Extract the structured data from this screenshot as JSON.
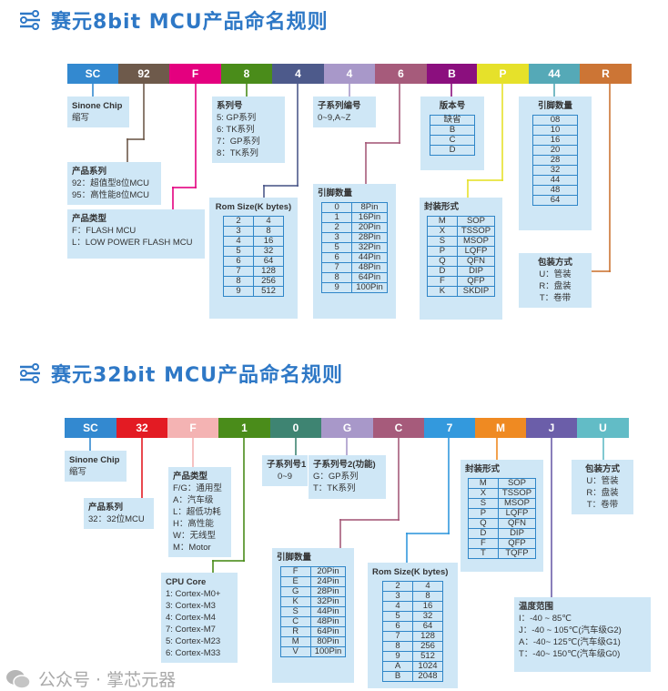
{
  "watermark": "公众号 · 掌芯元器",
  "sections": [
    {
      "title": "赛元8bit MCU产品命名规则",
      "segments": [
        {
          "label": "SC",
          "color": "#3389d0"
        },
        {
          "label": "92",
          "color": "#6e5a4b"
        },
        {
          "label": "F",
          "color": "#e4007f"
        },
        {
          "label": "8",
          "color": "#4a8c1a"
        },
        {
          "label": "4",
          "color": "#4d5a8b"
        },
        {
          "label": "4",
          "color": "#a898c9"
        },
        {
          "label": "6",
          "color": "#a65b7b"
        },
        {
          "label": "B",
          "color": "#8b0f7e"
        },
        {
          "label": "P",
          "color": "#e6e12a"
        },
        {
          "label": "44",
          "color": "#55a9b7"
        },
        {
          "label": "R",
          "color": "#cc7535"
        }
      ],
      "boxes": [
        {
          "title": "Sinone Chip",
          "lines": [
            "缩写"
          ]
        },
        {
          "title": "产品系列",
          "lines": [
            "92：超值型8位MCU",
            "95：高性能8位MCU"
          ]
        },
        {
          "title": "产品类型",
          "lines": [
            "F：FLASH MCU",
            "L：LOW POWER FLASH MCU"
          ]
        },
        {
          "title": "系列号",
          "lines": [
            "5:  GP系列",
            "6:  TK系列",
            "7：GP系列",
            "8：TK系列"
          ]
        },
        {
          "title": "Rom Size(K bytes)",
          "table": [
            [
              "2",
              "4"
            ],
            [
              "3",
              "8"
            ],
            [
              "4",
              "16"
            ],
            [
              "5",
              "32"
            ],
            [
              "6",
              "64"
            ],
            [
              "7",
              "128"
            ],
            [
              "8",
              "256"
            ],
            [
              "9",
              "512"
            ]
          ]
        },
        {
          "title": "子系列编号",
          "lines": [
            "0~9,A~Z"
          ]
        },
        {
          "title": "引脚数量",
          "table": [
            [
              "0",
              "8Pin"
            ],
            [
              "1",
              "16Pin"
            ],
            [
              "2",
              "20Pin"
            ],
            [
              "3",
              "28Pin"
            ],
            [
              "5",
              "32Pin"
            ],
            [
              "6",
              "44Pin"
            ],
            [
              "7",
              "48Pin"
            ],
            [
              "8",
              "64Pin"
            ],
            [
              "9",
              "100Pin"
            ]
          ]
        },
        {
          "title": "版本号",
          "table": [
            [
              "缺省"
            ],
            [
              "B"
            ],
            [
              "C"
            ],
            [
              "D"
            ]
          ]
        },
        {
          "title": "封装形式",
          "table": [
            [
              "M",
              "SOP"
            ],
            [
              "X",
              "TSSOP"
            ],
            [
              "S",
              "MSOP"
            ],
            [
              "P",
              "LQFP"
            ],
            [
              "Q",
              "QFN"
            ],
            [
              "D",
              "DIP"
            ],
            [
              "F",
              "QFP"
            ],
            [
              "K",
              "SKDIP"
            ]
          ]
        },
        {
          "title": "引脚数量",
          "table": [
            [
              "08"
            ],
            [
              "10"
            ],
            [
              "16"
            ],
            [
              "20"
            ],
            [
              "28"
            ],
            [
              "32"
            ],
            [
              "44"
            ],
            [
              "48"
            ],
            [
              "64"
            ]
          ]
        },
        {
          "title": "包装方式",
          "lines": [
            "U：管装",
            "R：盘装",
            "T：卷带"
          ]
        }
      ]
    },
    {
      "title": "赛元32bit MCU产品命名规则",
      "segments": [
        {
          "label": "SC",
          "color": "#3389d0"
        },
        {
          "label": "32",
          "color": "#e31b23"
        },
        {
          "label": "F",
          "color": "#f4b3b3"
        },
        {
          "label": "1",
          "color": "#4a8c1a"
        },
        {
          "label": "0",
          "color": "#3e8472"
        },
        {
          "label": "G",
          "color": "#a898c9"
        },
        {
          "label": "C",
          "color": "#a65b7b"
        },
        {
          "label": "7",
          "color": "#3399dd"
        },
        {
          "label": "M",
          "color": "#ef8a22"
        },
        {
          "label": "J",
          "color": "#6b5ea9"
        },
        {
          "label": "U",
          "color": "#62bcc6"
        }
      ],
      "boxes": [
        {
          "title": "Sinone Chip",
          "lines": [
            "缩写"
          ]
        },
        {
          "title": "产品系列",
          "lines": [
            "32：32位MCU"
          ]
        },
        {
          "title": "产品类型",
          "lines": [
            "F/G：通用型",
            "A：汽车级",
            "L：超低功耗",
            "H：高性能",
            "W：无线型",
            "M：Motor"
          ]
        },
        {
          "title": "CPU Core",
          "lines": [
            "1: Cortex-M0+",
            "3: Cortex-M3",
            "4: Cortex-M4",
            "7: Cortex-M7",
            "5: Cortex-M23",
            "6: Cortex-M33"
          ]
        },
        {
          "title": "子系列号1",
          "lines": [
            "0~9"
          ]
        },
        {
          "title": "子系列号2(功能)",
          "lines": [
            "G：GP系列",
            "T：TK系列"
          ]
        },
        {
          "title": "引脚数量",
          "table": [
            [
              "F",
              "20Pin"
            ],
            [
              "E",
              "24Pin"
            ],
            [
              "G",
              "28Pin"
            ],
            [
              "K",
              "32Pin"
            ],
            [
              "S",
              "44Pin"
            ],
            [
              "C",
              "48Pin"
            ],
            [
              "R",
              "64Pin"
            ],
            [
              "M",
              "80Pin"
            ],
            [
              "V",
              "100Pin"
            ]
          ]
        },
        {
          "title": "Rom Size(K bytes)",
          "table": [
            [
              "2",
              "4"
            ],
            [
              "3",
              "8"
            ],
            [
              "4",
              "16"
            ],
            [
              "5",
              "32"
            ],
            [
              "6",
              "64"
            ],
            [
              "7",
              "128"
            ],
            [
              "8",
              "256"
            ],
            [
              "9",
              "512"
            ],
            [
              "A",
              "1024"
            ],
            [
              "B",
              "2048"
            ]
          ]
        },
        {
          "title": "封装形式",
          "table": [
            [
              "M",
              "SOP"
            ],
            [
              "X",
              "TSSOP"
            ],
            [
              "S",
              "MSOP"
            ],
            [
              "P",
              "LQFP"
            ],
            [
              "Q",
              "QFN"
            ],
            [
              "D",
              "DIP"
            ],
            [
              "F",
              "QFP"
            ],
            [
              "T",
              "TQFP"
            ]
          ]
        },
        {
          "title": "温度范围",
          "lines": [
            "I：-40 ~ 85℃",
            "J：-40 ~ 105℃(汽车级G2)",
            "A：-40~ 125℃(汽车级G1)",
            "T：-40~ 150℃(汽车级G0)"
          ]
        },
        {
          "title": "包装方式",
          "lines": [
            "U：管装",
            "R：盘装",
            "T：卷带"
          ]
        }
      ]
    }
  ]
}
